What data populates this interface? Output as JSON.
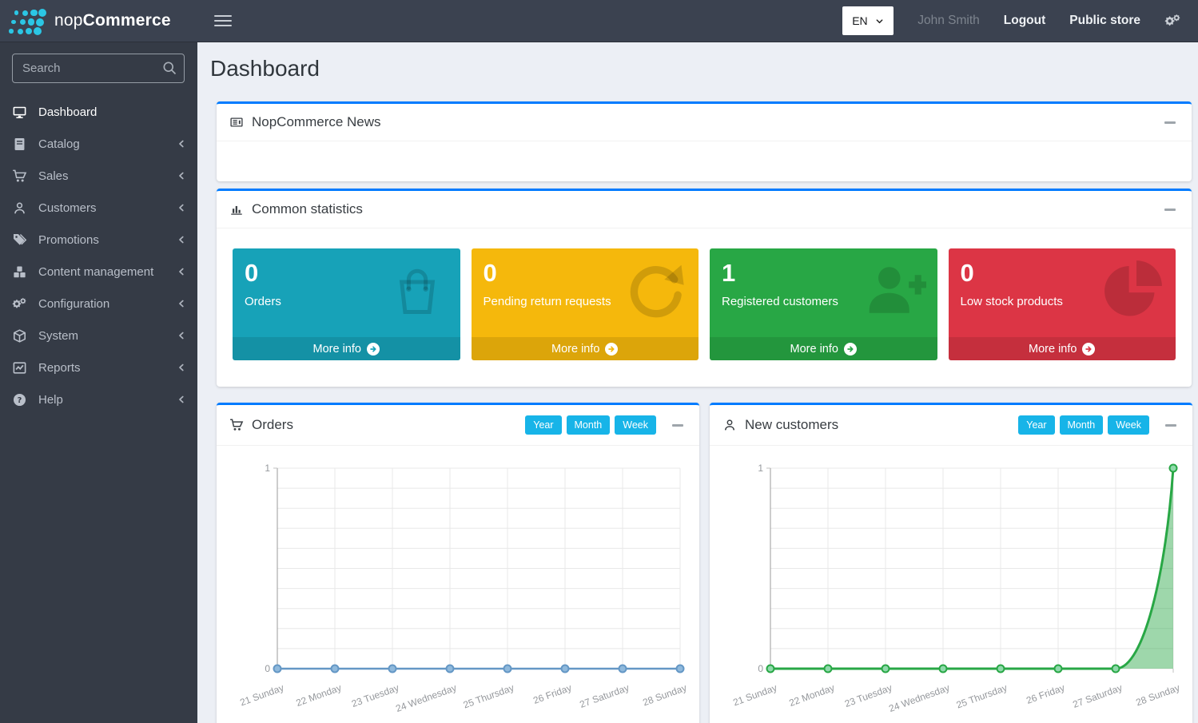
{
  "logo": {
    "brand_light": "nop",
    "brand_bold": "Commerce"
  },
  "topbar": {
    "language": "EN",
    "user_name": "John Smith",
    "logout_label": "Logout",
    "public_store_label": "Public store"
  },
  "sidebar": {
    "search_placeholder": "Search",
    "items": [
      {
        "label": "Dashboard",
        "icon": "monitor-icon",
        "active": true,
        "has_children": false
      },
      {
        "label": "Catalog",
        "icon": "book-icon",
        "active": false,
        "has_children": true
      },
      {
        "label": "Sales",
        "icon": "cart-icon",
        "active": false,
        "has_children": true
      },
      {
        "label": "Customers",
        "icon": "user-icon",
        "active": false,
        "has_children": true
      },
      {
        "label": "Promotions",
        "icon": "tags-icon",
        "active": false,
        "has_children": true
      },
      {
        "label": "Content management",
        "icon": "cubes-icon",
        "active": false,
        "has_children": true
      },
      {
        "label": "Configuration",
        "icon": "gears-icon",
        "active": false,
        "has_children": true
      },
      {
        "label": "System",
        "icon": "cube-icon",
        "active": false,
        "has_children": true
      },
      {
        "label": "Reports",
        "icon": "line-chart-icon",
        "active": false,
        "has_children": true
      },
      {
        "label": "Help",
        "icon": "help-icon",
        "active": false,
        "has_children": true
      }
    ]
  },
  "page": {
    "title": "Dashboard"
  },
  "panels": {
    "news": {
      "title": "NopCommerce News",
      "icon": "newspaper-icon"
    },
    "stats": {
      "title": "Common statistics",
      "icon": "bar-chart-icon",
      "more_info_label": "More info",
      "cards": [
        {
          "value": "0",
          "label": "Orders",
          "icon": "shopping-bag-icon",
          "color": "#17a2b8"
        },
        {
          "value": "0",
          "label": "Pending return requests",
          "icon": "refresh-icon",
          "color": "#f5b80c"
        },
        {
          "value": "1",
          "label": "Registered customers",
          "icon": "user-plus-icon",
          "color": "#28a745"
        },
        {
          "value": "0",
          "label": "Low stock products",
          "icon": "pie-chart-icon",
          "color": "#dc3545"
        }
      ]
    },
    "orders": {
      "title": "Orders",
      "icon": "cart-icon",
      "buttons": [
        "Year",
        "Month",
        "Week"
      ]
    },
    "customers": {
      "title": "New customers",
      "icon": "user-icon",
      "buttons": [
        "Year",
        "Month",
        "Week"
      ]
    }
  },
  "chart_data": [
    {
      "type": "line",
      "title": "Orders",
      "x": [
        "21 Sunday",
        "22 Monday",
        "23 Tuesday",
        "24 Wednesday",
        "25 Thursday",
        "26 Friday",
        "27 Saturday",
        "28 Sunday"
      ],
      "series": [
        {
          "name": "Orders",
          "values": [
            0,
            0,
            0,
            0,
            0,
            0,
            0,
            0
          ]
        }
      ],
      "ylim": [
        0,
        1
      ],
      "grid": true,
      "legend": "none",
      "line_color": "#6497c5",
      "marker_fill": "#8fb9dc",
      "line_width": 2.5,
      "fill": false,
      "fill_color": ""
    },
    {
      "type": "line",
      "title": "New customers",
      "x": [
        "21 Sunday",
        "22 Monday",
        "23 Tuesday",
        "24 Wednesday",
        "25 Thursday",
        "26 Friday",
        "27 Saturday",
        "28 Sunday"
      ],
      "series": [
        {
          "name": "New customers",
          "values": [
            0,
            0,
            0,
            0,
            0,
            0,
            0,
            1
          ]
        }
      ],
      "ylim": [
        0,
        1
      ],
      "grid": true,
      "legend": "none",
      "line_color": "#28a745",
      "marker_fill": "#8fd9ab",
      "line_width": 3,
      "fill": true,
      "fill_color": "rgba(40,167,69,0.45)"
    }
  ]
}
